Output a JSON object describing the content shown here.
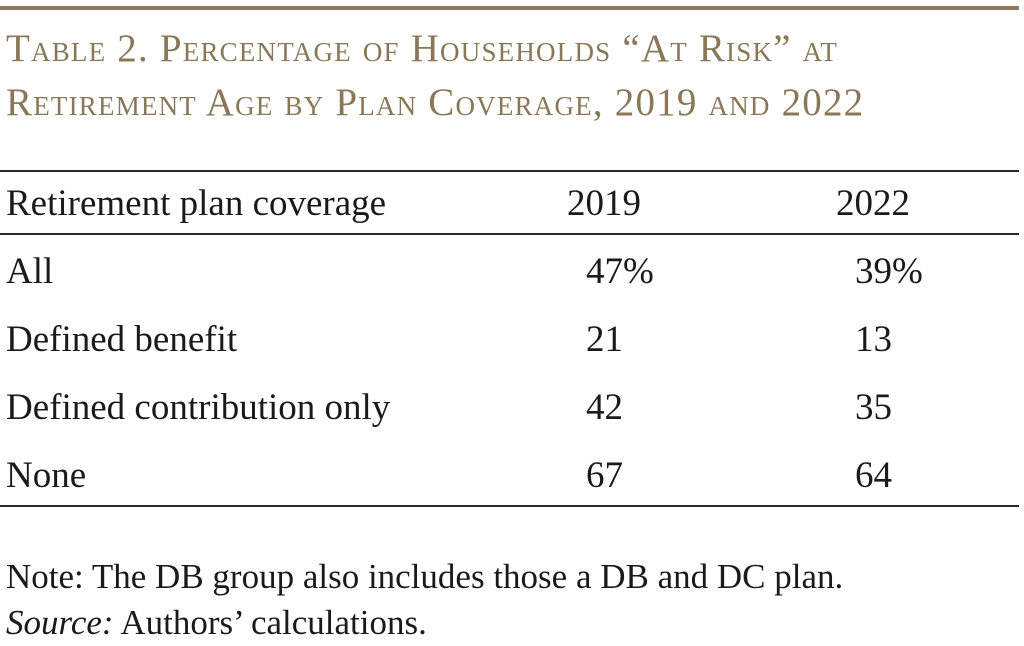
{
  "title": {
    "line1": "Table 2. Percentage of Households “At Risk” at",
    "line2": "Retirement Age by Plan Coverage, 2019 and 2022"
  },
  "table": {
    "headers": [
      "Retirement plan coverage",
      "2019",
      "2022"
    ],
    "rows": [
      {
        "label": "All",
        "v2019": "47%",
        "v2022": "39%"
      },
      {
        "label": "Defined benefit",
        "v2019": "21",
        "v2022": "13"
      },
      {
        "label": "Defined contribution only",
        "v2019": "42",
        "v2022": "35"
      },
      {
        "label": "None",
        "v2019": "67",
        "v2022": "64"
      }
    ]
  },
  "note": {
    "text": "Note: The DB group also includes those a DB and DC plan.",
    "source_label": "Source:",
    "source_text": " Authors’ calculations."
  },
  "colors": {
    "title": "#8a7757",
    "top_rule": "#8c7a5c",
    "text": "#1a1a1a"
  }
}
